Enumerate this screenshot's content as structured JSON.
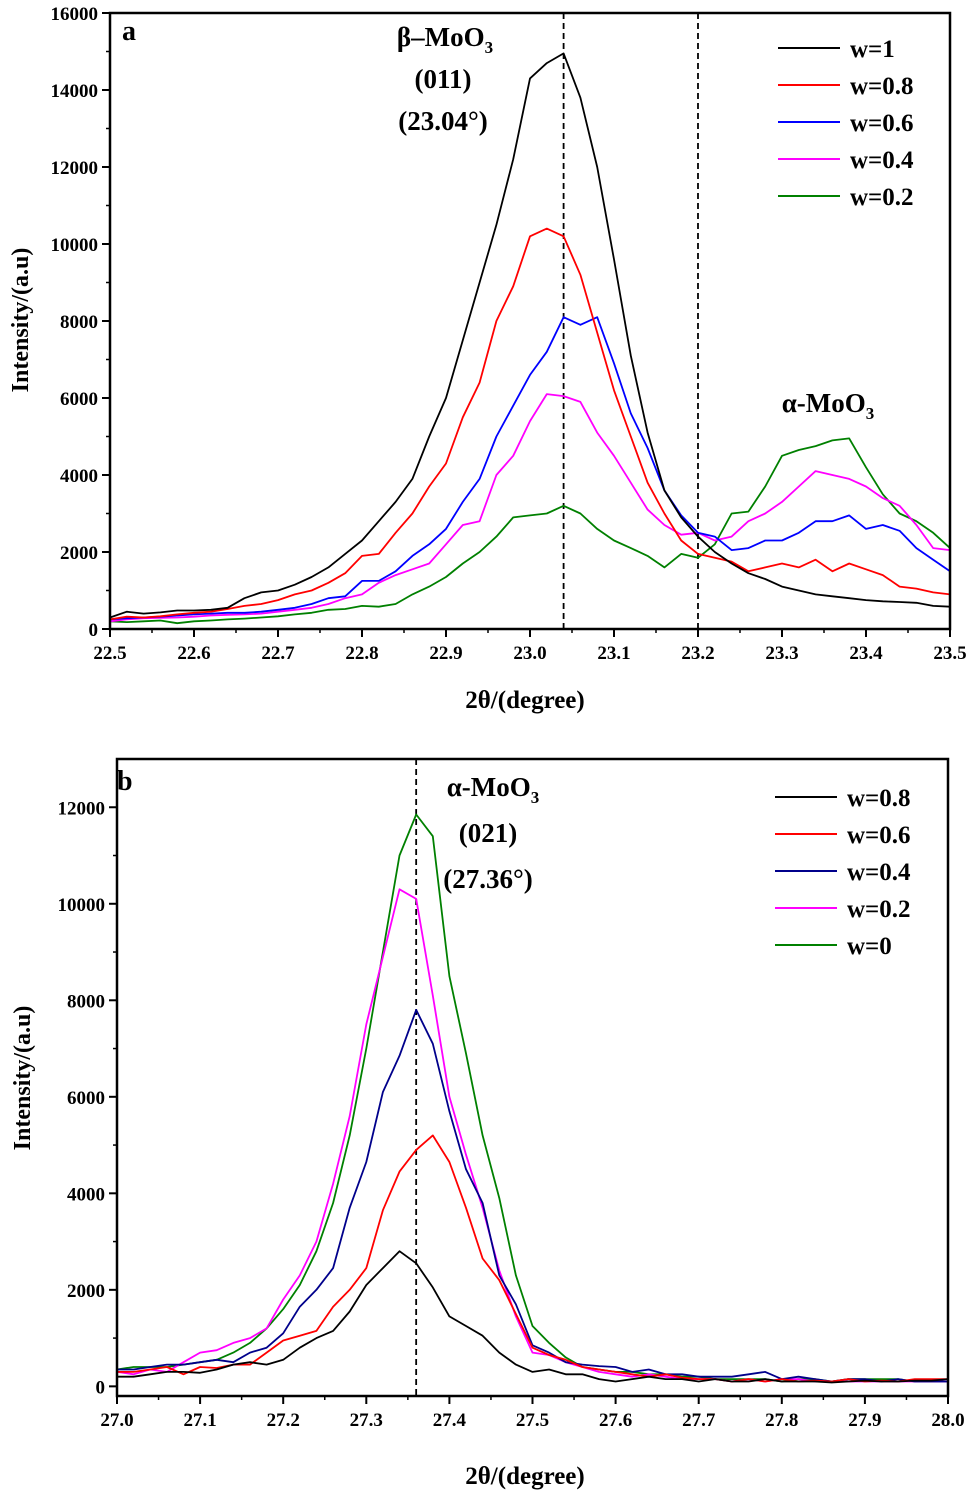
{
  "chart_data": [
    {
      "type": "line",
      "panel_label": "a",
      "xlabel": "2θ/(degree)",
      "ylabel": "Intensity/(a.u)",
      "xlim": [
        22.5,
        23.5
      ],
      "ylim": [
        0,
        16000
      ],
      "xticks": [
        "22.5",
        "22.6",
        "22.7",
        "22.8",
        "22.9",
        "23.0",
        "23.1",
        "23.2",
        "23.3",
        "23.4",
        "23.5"
      ],
      "yticks": [
        "0",
        "2000",
        "4000",
        "6000",
        "8000",
        "10000",
        "12000",
        "14000",
        "16000"
      ],
      "x": [
        22.5,
        22.52,
        22.54,
        22.56,
        22.58,
        22.6,
        22.62,
        22.64,
        22.66,
        22.68,
        22.7,
        22.72,
        22.74,
        22.76,
        22.78,
        22.8,
        22.82,
        22.84,
        22.86,
        22.88,
        22.9,
        22.92,
        22.94,
        22.96,
        22.98,
        23.0,
        23.02,
        23.04,
        23.06,
        23.08,
        23.1,
        23.12,
        23.14,
        23.16,
        23.18,
        23.2,
        23.22,
        23.24,
        23.26,
        23.28,
        23.3,
        23.32,
        23.34,
        23.36,
        23.38,
        23.4,
        23.42,
        23.44,
        23.46,
        23.48,
        23.5
      ],
      "series": [
        {
          "name": "w=1",
          "color": "#000000",
          "values": [
            300,
            450,
            400,
            430,
            480,
            480,
            500,
            550,
            800,
            950,
            1000,
            1150,
            1350,
            1600,
            1950,
            2300,
            2800,
            3300,
            3900,
            5000,
            6000,
            7500,
            9000,
            10500,
            12200,
            14300,
            14700,
            14950,
            13800,
            12000,
            9600,
            7100,
            5100,
            3600,
            2900,
            2400,
            2000,
            1700,
            1450,
            1300,
            1100,
            1000,
            900,
            850,
            800,
            750,
            720,
            700,
            680,
            600,
            580
          ]
        },
        {
          "name": "w=0.8",
          "color": "#ff0000",
          "values": [
            250,
            320,
            300,
            330,
            380,
            420,
            450,
            520,
            600,
            650,
            750,
            900,
            1000,
            1200,
            1450,
            1900,
            1950,
            2500,
            3000,
            3700,
            4300,
            5500,
            6400,
            8000,
            8900,
            10200,
            10400,
            10200,
            9200,
            7700,
            6200,
            5000,
            3800,
            3000,
            2300,
            1950,
            1850,
            1750,
            1500,
            1600,
            1700,
            1600,
            1800,
            1500,
            1700,
            1550,
            1400,
            1100,
            1050,
            950,
            900
          ]
        },
        {
          "name": "w=0.6",
          "color": "#0000ff",
          "values": [
            250,
            280,
            300,
            320,
            350,
            380,
            400,
            420,
            420,
            450,
            500,
            550,
            650,
            800,
            850,
            1250,
            1250,
            1500,
            1900,
            2200,
            2600,
            3300,
            3900,
            5000,
            5800,
            6600,
            7200,
            8100,
            7900,
            8100,
            6900,
            5600,
            4700,
            3600,
            2950,
            2500,
            2400,
            2050,
            2100,
            2300,
            2300,
            2500,
            2800,
            2800,
            2950,
            2600,
            2700,
            2550,
            2100,
            1800,
            1500
          ]
        },
        {
          "name": "w=0.4",
          "color": "#ff00ff",
          "values": [
            200,
            250,
            280,
            290,
            300,
            320,
            350,
            370,
            380,
            400,
            450,
            500,
            550,
            650,
            800,
            900,
            1200,
            1400,
            1550,
            1700,
            2200,
            2700,
            2800,
            4000,
            4500,
            5400,
            6100,
            6050,
            5900,
            5100,
            4500,
            3800,
            3100,
            2700,
            2450,
            2500,
            2300,
            2400,
            2800,
            3000,
            3300,
            3700,
            4100,
            4000,
            3900,
            3700,
            3400,
            3200,
            2700,
            2100,
            2050
          ]
        },
        {
          "name": "w=0.2",
          "color": "#008000",
          "values": [
            200,
            180,
            200,
            220,
            150,
            200,
            220,
            250,
            270,
            300,
            330,
            380,
            420,
            500,
            520,
            600,
            580,
            650,
            900,
            1100,
            1350,
            1700,
            2000,
            2400,
            2900,
            2950,
            3000,
            3200,
            3000,
            2600,
            2300,
            2100,
            1900,
            1600,
            1950,
            1850,
            2200,
            3000,
            3050,
            3700,
            4500,
            4650,
            4750,
            4900,
            4950,
            4200,
            3500,
            3000,
            2800,
            2500,
            2100
          ]
        }
      ],
      "legend": [
        "w=1",
        "w=0.8",
        "w=0.6",
        "w=0.4",
        "w=0.2"
      ],
      "legend_position": "top-right",
      "reference_lines_x": [
        23.04,
        23.2
      ],
      "annotations": {
        "beta_phase": "β–MoO",
        "beta_sub": "3",
        "beta_plane": "(011)",
        "beta_angle": "(23.04°)",
        "alpha_phase": "α-MoO",
        "alpha_sub": "3"
      }
    },
    {
      "type": "line",
      "panel_label": "b",
      "xlabel": "2θ/(degree)",
      "ylabel": "Intensity/(a.u)",
      "xlim": [
        27.0,
        28.0
      ],
      "ylim": [
        -200,
        13000
      ],
      "xticks": [
        "27.0",
        "27.1",
        "27.2",
        "27.3",
        "27.4",
        "27.5",
        "27.6",
        "27.7",
        "27.8",
        "27.9",
        "28.0"
      ],
      "yticks": [
        "0",
        "2000",
        "4000",
        "6000",
        "8000",
        "10000",
        "12000"
      ],
      "x": [
        27.0,
        27.02,
        27.04,
        27.06,
        27.08,
        27.1,
        27.12,
        27.14,
        27.16,
        27.18,
        27.2,
        27.22,
        27.24,
        27.26,
        27.28,
        27.3,
        27.32,
        27.34,
        27.36,
        27.38,
        27.4,
        27.42,
        27.44,
        27.46,
        27.48,
        27.5,
        27.52,
        27.54,
        27.56,
        27.58,
        27.6,
        27.62,
        27.64,
        27.66,
        27.68,
        27.7,
        27.72,
        27.74,
        27.76,
        27.78,
        27.8,
        27.82,
        27.84,
        27.86,
        27.88,
        27.9,
        27.92,
        27.94,
        27.96,
        27.98,
        28.0
      ],
      "series": [
        {
          "name": "w=0.8",
          "color": "#000000",
          "values": [
            200,
            200,
            250,
            300,
            300,
            280,
            350,
            450,
            500,
            450,
            550,
            800,
            1000,
            1150,
            1550,
            2100,
            2450,
            2800,
            2550,
            2050,
            1450,
            1250,
            1050,
            700,
            450,
            300,
            350,
            250,
            250,
            150,
            100,
            150,
            200,
            150,
            150,
            100,
            150,
            100,
            100,
            150,
            100,
            100,
            100,
            80,
            100,
            120,
            100,
            100,
            120,
            120,
            150
          ]
        },
        {
          "name": "w=0.6",
          "color": "#ff0000",
          "values": [
            300,
            300,
            350,
            400,
            250,
            400,
            380,
            450,
            450,
            700,
            950,
            1050,
            1150,
            1650,
            2000,
            2450,
            3650,
            4450,
            4900,
            5200,
            4650,
            3700,
            2650,
            2200,
            1500,
            800,
            650,
            550,
            400,
            350,
            300,
            250,
            200,
            250,
            180,
            150,
            150,
            100,
            150,
            100,
            150,
            100,
            120,
            100,
            150,
            100,
            120,
            100,
            150,
            150,
            150
          ]
        },
        {
          "name": "w=0.4",
          "color": "#00008b",
          "values": [
            350,
            350,
            400,
            450,
            450,
            500,
            550,
            500,
            700,
            800,
            1100,
            1650,
            2000,
            2450,
            3700,
            4650,
            6100,
            6850,
            7800,
            7100,
            5700,
            4500,
            3800,
            2300,
            1700,
            850,
            700,
            500,
            450,
            420,
            400,
            300,
            350,
            250,
            250,
            200,
            200,
            200,
            250,
            300,
            150,
            200,
            150,
            100,
            150,
            150,
            100,
            150,
            100,
            100,
            100
          ]
        },
        {
          "name": "w=0.2",
          "color": "#ff00ff",
          "values": [
            300,
            250,
            350,
            300,
            500,
            700,
            750,
            900,
            1000,
            1200,
            1800,
            2300,
            3000,
            4200,
            5600,
            7500,
            8900,
            10300,
            10100,
            8100,
            6000,
            4800,
            3700,
            2400,
            1450,
            700,
            650,
            500,
            400,
            300,
            250,
            200,
            250,
            200,
            150,
            150,
            150,
            100,
            150,
            100,
            150,
            150,
            100,
            100,
            100,
            100,
            100,
            100,
            100,
            100,
            100
          ]
        },
        {
          "name": "w=0",
          "color": "#008000",
          "values": [
            350,
            400,
            400,
            400,
            450,
            500,
            550,
            700,
            900,
            1200,
            1600,
            2100,
            2800,
            3800,
            5200,
            7000,
            9000,
            11000,
            11850,
            11400,
            8500,
            6900,
            5200,
            3900,
            2300,
            1250,
            900,
            600,
            400,
            350,
            300,
            300,
            250,
            250,
            200,
            200,
            150,
            150,
            150,
            150,
            100,
            150,
            150,
            100,
            150,
            150,
            150,
            150,
            100,
            100,
            100
          ]
        }
      ],
      "legend": [
        "w=0.8",
        "w=0.6",
        "w=0.4",
        "w=0.2",
        "w=0"
      ],
      "legend_position": "top-right",
      "reference_lines_x": [
        27.36
      ],
      "annotations": {
        "alpha_phase": "α-MoO",
        "alpha_sub": "3",
        "alpha_plane": "(021)",
        "alpha_angle": "(27.36°)"
      }
    }
  ]
}
